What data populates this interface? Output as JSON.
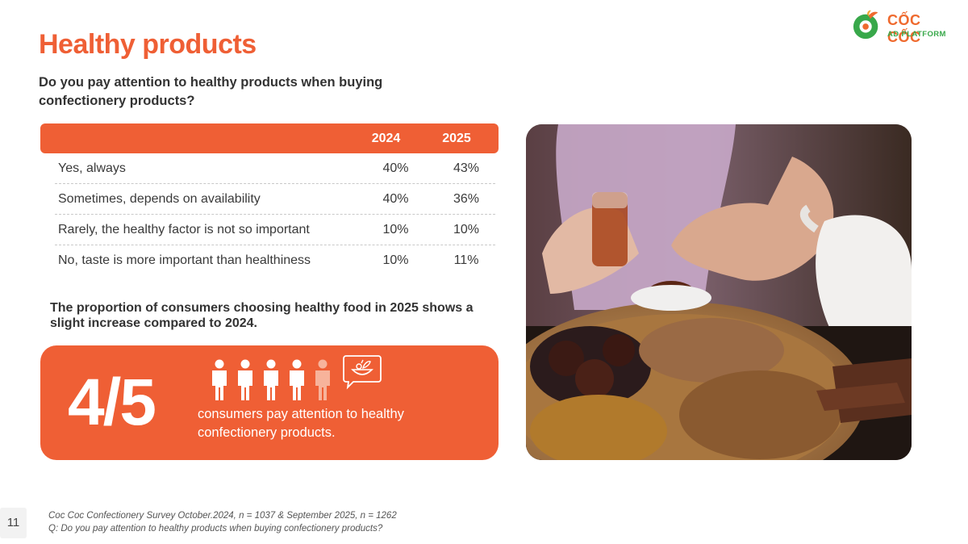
{
  "slide": {
    "title": "Healthy products",
    "question": "Do you pay attention to healthy products when buying confectionery products?",
    "page_number": "11"
  },
  "logo": {
    "name": "CỐC CỐC",
    "subtitle": "AD PLATFORM",
    "colors": {
      "orange": "#ef6a2e",
      "green": "#38a84a"
    }
  },
  "table": {
    "columns": [
      "2024",
      "2025"
    ],
    "rows": [
      {
        "label": "Yes, always",
        "v2024": "40%",
        "v2025": "43%"
      },
      {
        "label": "Sometimes, depends on availability",
        "v2024": "40%",
        "v2025": "36%"
      },
      {
        "label": "Rarely, the healthy factor is not so important",
        "v2024": "10%",
        "v2025": "10%"
      },
      {
        "label": "No, taste is more important than healthiness",
        "v2024": "10%",
        "v2025": "11%"
      }
    ]
  },
  "note": "The proportion of consumers choosing healthy food in 2025 shows a slight increase compared to 2024.",
  "highlight": {
    "fraction": "4/5",
    "text": "consumers pay attention to healthy confectionery products.",
    "people_highlighted": 4,
    "people_total": 5,
    "icons": [
      "person-icon",
      "healthy-food-chat-icon"
    ],
    "color": "#ef5f35"
  },
  "photo": {
    "subject": "photo of a woman picking a date from a wooden tray of dried fruits and nuts, with tea"
  },
  "footer": {
    "source": "Coc Coc Confectionery Survey October.2024, n = 1037 & September 2025, n = 1262",
    "question": "Q: Do you pay attention to healthy products when buying confectionery products?"
  }
}
